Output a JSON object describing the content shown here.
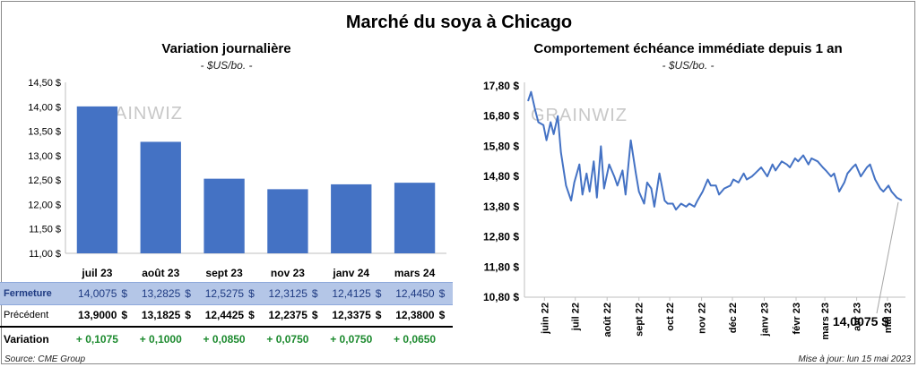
{
  "title": "Marché du soya à Chicago",
  "left": {
    "subtitle": "Variation journalière",
    "unit": "- $US/bo. -"
  },
  "right": {
    "subtitle": "Comportement échéance immédiate depuis 1 an",
    "unit": "- $US/bo. -",
    "last_label": "14,0075 $"
  },
  "watermark": "GRAINWIZ",
  "footer": {
    "source": "Source: CME Group",
    "updated": "Mise à jour: lun 15 mai 2023"
  },
  "table": {
    "rows": [
      {
        "label": "Fermeture",
        "values": [
          "14,0075",
          "13,2825",
          "12,5275",
          "12,3125",
          "12,4125",
          "12,4450"
        ],
        "suffix": "$"
      },
      {
        "label": "Précédent",
        "values": [
          "13,9000",
          "13,1825",
          "12,4425",
          "12,2375",
          "12,3375",
          "12,3800"
        ],
        "suffix": "$"
      },
      {
        "label": "Variation",
        "values": [
          "+ 0,1075",
          "+ 0,1000",
          "+ 0,0850",
          "+ 0,0750",
          "+ 0,0750",
          "+ 0,0650"
        ]
      }
    ]
  },
  "colors": {
    "bar": "#4472c4",
    "line": "#4472c4",
    "header_row": "#b4c6e7",
    "positive": "#1c8a2e"
  },
  "chart_data": [
    {
      "type": "bar",
      "title": "Variation journalière",
      "categories": [
        "juil 23",
        "août 23",
        "sept 23",
        "nov 23",
        "janv 24",
        "mars 24"
      ],
      "values": [
        14.0075,
        13.2825,
        12.5275,
        12.3125,
        12.4125,
        12.445
      ],
      "ylim": [
        11.0,
        14.5
      ],
      "yticks": [
        "11,00 $",
        "11,50 $",
        "12,00 $",
        "12,50 $",
        "13,00 $",
        "13,50 $",
        "14,00 $",
        "14,50 $"
      ],
      "ytick_values": [
        11.0,
        11.5,
        12.0,
        12.5,
        13.0,
        13.5,
        14.0,
        14.5
      ],
      "grid": false
    },
    {
      "type": "line",
      "title": "Comportement échéance immédiate depuis 1 an",
      "ylim": [
        10.8,
        17.8
      ],
      "yticks": [
        "10,80 $",
        "11,80 $",
        "12,80 $",
        "13,80 $",
        "14,80 $",
        "15,80 $",
        "16,80 $",
        "17,80 $"
      ],
      "ytick_values": [
        10.8,
        11.8,
        12.8,
        13.8,
        14.8,
        15.8,
        16.8,
        17.8
      ],
      "xticks": [
        "juin 22",
        "juil 22",
        "août 22",
        "sept 22",
        "oct 22",
        "nov 22",
        "déc 22",
        "janv 23",
        "févr 23",
        "mars 23",
        "avr 23",
        "mai 23"
      ],
      "x": [
        "2022-05-16",
        "2022-05-19",
        "2022-05-23",
        "2022-05-26",
        "2022-05-31",
        "2022-06-03",
        "2022-06-07",
        "2022-06-10",
        "2022-06-14",
        "2022-06-17",
        "2022-06-22",
        "2022-06-27",
        "2022-06-30",
        "2022-07-05",
        "2022-07-08",
        "2022-07-12",
        "2022-07-15",
        "2022-07-19",
        "2022-07-22",
        "2022-07-26",
        "2022-07-29",
        "2022-08-03",
        "2022-08-08",
        "2022-08-11",
        "2022-08-16",
        "2022-08-19",
        "2022-08-24",
        "2022-08-29",
        "2022-09-01",
        "2022-09-06",
        "2022-09-09",
        "2022-09-13",
        "2022-09-16",
        "2022-09-21",
        "2022-09-26",
        "2022-09-29",
        "2022-10-04",
        "2022-10-07",
        "2022-10-12",
        "2022-10-17",
        "2022-10-20",
        "2022-10-25",
        "2022-10-28",
        "2022-11-02",
        "2022-11-07",
        "2022-11-10",
        "2022-11-15",
        "2022-11-18",
        "2022-11-23",
        "2022-11-29",
        "2022-12-02",
        "2022-12-07",
        "2022-12-12",
        "2022-12-15",
        "2022-12-20",
        "2022-12-23",
        "2022-12-29",
        "2023-01-04",
        "2023-01-09",
        "2023-01-12",
        "2023-01-18",
        "2023-01-23",
        "2023-01-26",
        "2023-01-31",
        "2023-02-03",
        "2023-02-08",
        "2023-02-13",
        "2023-02-16",
        "2023-02-22",
        "2023-02-27",
        "2023-03-02",
        "2023-03-07",
        "2023-03-10",
        "2023-03-15",
        "2023-03-20",
        "2023-03-23",
        "2023-03-28",
        "2023-03-31",
        "2023-04-05",
        "2023-04-11",
        "2023-04-14",
        "2023-04-19",
        "2023-04-24",
        "2023-04-27",
        "2023-05-02",
        "2023-05-05",
        "2023-05-10",
        "2023-05-15"
      ],
      "values": [
        17.3,
        17.6,
        17.0,
        16.6,
        16.5,
        16.0,
        16.6,
        16.2,
        16.8,
        15.6,
        14.5,
        14.0,
        14.6,
        15.2,
        14.2,
        14.9,
        14.3,
        15.3,
        14.1,
        15.8,
        14.4,
        15.2,
        14.8,
        14.5,
        15.0,
        14.2,
        16.0,
        14.9,
        14.3,
        13.9,
        14.6,
        14.4,
        13.8,
        14.9,
        14.0,
        13.9,
        13.9,
        13.7,
        13.9,
        13.8,
        13.9,
        13.8,
        14.0,
        14.3,
        14.7,
        14.5,
        14.5,
        14.2,
        14.4,
        14.5,
        14.7,
        14.6,
        14.9,
        14.7,
        14.8,
        14.9,
        15.1,
        14.8,
        15.2,
        15.0,
        15.3,
        15.2,
        15.1,
        15.4,
        15.3,
        15.5,
        15.2,
        15.4,
        15.3,
        15.1,
        15.0,
        14.8,
        14.9,
        14.3,
        14.6,
        14.9,
        15.1,
        15.2,
        14.8,
        15.1,
        15.2,
        14.7,
        14.4,
        14.3,
        14.5,
        14.3,
        14.1,
        14.0075
      ]
    }
  ]
}
